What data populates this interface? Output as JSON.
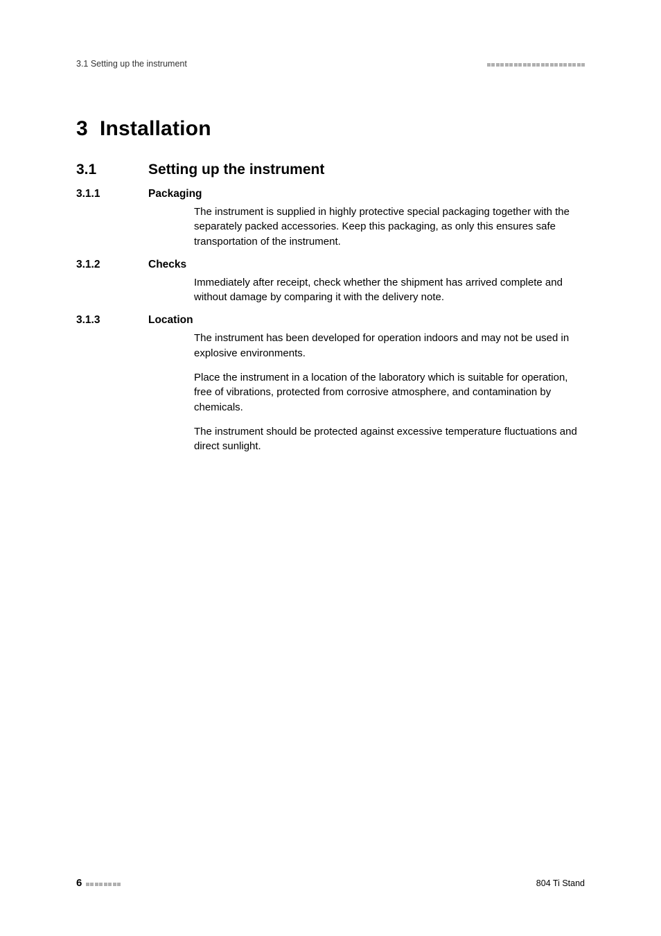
{
  "header": {
    "left": "3.1 Setting up the instrument",
    "squares_count": 22
  },
  "chapter": {
    "num": "3",
    "title": "Installation"
  },
  "section": {
    "num": "3.1",
    "title": "Setting up the instrument"
  },
  "sub1": {
    "num": "3.1.1",
    "title": "Packaging",
    "p1": "The instrument is supplied in highly protective special packaging together with the separately packed accessories. Keep this packaging, as only this ensures safe transportation of the instrument."
  },
  "sub2": {
    "num": "3.1.2",
    "title": "Checks",
    "p1": "Immediately after receipt, check whether the shipment has arrived complete and without damage by comparing it with the delivery note."
  },
  "sub3": {
    "num": "3.1.3",
    "title": "Location",
    "p1": "The instrument has been developed for operation indoors and may not be used in explosive environments.",
    "p2": "Place the instrument in a location of the laboratory which is suitable for operation, free of vibrations, protected from corrosive atmosphere, and contamination by chemicals.",
    "p3": "The instrument should be protected against excessive temperature fluctuations and direct sunlight."
  },
  "footer": {
    "page": "6",
    "squares_count": 8,
    "right": "804 Ti Stand"
  }
}
